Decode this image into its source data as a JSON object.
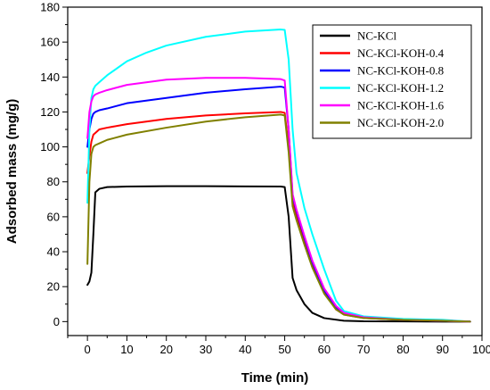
{
  "chart_data": {
    "type": "line",
    "title": "",
    "xlabel": "Time (min)",
    "ylabel": "Adsorbed mass (mg/g)",
    "xlim": [
      -5,
      100
    ],
    "ylim": [
      -8,
      180
    ],
    "xticks": [
      0,
      10,
      20,
      30,
      40,
      50,
      60,
      70,
      80,
      90,
      100
    ],
    "yticks": [
      0,
      20,
      40,
      60,
      80,
      100,
      120,
      140,
      160,
      180
    ],
    "grid": false,
    "legend_position": "top-right",
    "series": [
      {
        "name": "NC-KCl",
        "color": "#000000",
        "x": [
          0,
          0.5,
          1,
          1.5,
          2,
          3,
          5,
          10,
          20,
          30,
          40,
          49,
          50,
          51,
          52,
          53,
          55,
          57,
          60,
          65,
          70,
          80,
          90,
          97
        ],
        "y": [
          21,
          23,
          28,
          50,
          74,
          76,
          77,
          77.3,
          77.5,
          77.5,
          77.4,
          77.3,
          77,
          60,
          25,
          18,
          10,
          5,
          2,
          0.5,
          0.2,
          0.1,
          0,
          0
        ]
      },
      {
        "name": "NC-KCl-KOH-0.4",
        "color": "#ff0000",
        "x": [
          0,
          0.5,
          1,
          1.5,
          2,
          3,
          5,
          10,
          20,
          30,
          40,
          49,
          50,
          51,
          52,
          53,
          55,
          57,
          60,
          63,
          65,
          70,
          80,
          90,
          97
        ],
        "y": [
          85,
          95,
          103,
          107,
          108,
          110,
          111,
          113,
          116,
          118,
          119.2,
          120,
          119.5,
          100,
          68,
          60,
          45,
          32,
          17,
          7,
          4,
          2,
          1,
          0.5,
          0
        ]
      },
      {
        "name": "NC-KCl-KOH-0.8",
        "color": "#0000ff",
        "x": [
          0,
          0.5,
          1,
          1.5,
          2,
          3,
          5,
          10,
          20,
          30,
          40,
          49,
          50,
          51,
          52,
          53,
          55,
          57,
          60,
          63,
          65,
          70,
          80,
          90,
          97
        ],
        "y": [
          100,
          110,
          116,
          119,
          120,
          121,
          122,
          125,
          128,
          131,
          133,
          134.5,
          134,
          110,
          72,
          63,
          48,
          34,
          18,
          8,
          5,
          2.5,
          1,
          0.5,
          0
        ]
      },
      {
        "name": "NC-KCl-KOH-1.2",
        "color": "#00ffff",
        "x": [
          0,
          0.5,
          1,
          1.5,
          2,
          3,
          5,
          10,
          15,
          20,
          30,
          40,
          49,
          50,
          51,
          52,
          53,
          55,
          57,
          60,
          63,
          65,
          70,
          80,
          90,
          97
        ],
        "y": [
          68,
          110,
          128,
          133,
          135,
          137,
          141,
          149,
          154,
          158,
          163,
          166,
          167.2,
          167,
          150,
          110,
          85,
          65,
          50,
          30,
          12,
          6,
          3,
          1.5,
          1,
          0
        ]
      },
      {
        "name": "NC-KCl-KOH-1.6",
        "color": "#ff00ff",
        "x": [
          0,
          0.5,
          1,
          1.5,
          2,
          3,
          5,
          10,
          20,
          30,
          40,
          49,
          50,
          51,
          52,
          53,
          55,
          57,
          60,
          63,
          65,
          70,
          80,
          90,
          97
        ],
        "y": [
          105,
          120,
          126,
          129,
          130,
          131,
          132.5,
          135.5,
          138.5,
          139.5,
          139.5,
          138.8,
          138,
          110,
          73,
          64,
          49,
          35,
          19,
          9,
          5,
          2.5,
          1,
          0.5,
          0
        ]
      },
      {
        "name": "NC-KCl-KOH-2.0",
        "color": "#808000",
        "x": [
          0,
          0.5,
          1,
          1.5,
          2,
          3,
          5,
          10,
          20,
          30,
          40,
          49,
          50,
          51,
          52,
          53,
          55,
          57,
          60,
          63,
          65,
          70,
          80,
          90,
          97
        ],
        "y": [
          33,
          80,
          96,
          100,
          101,
          102,
          104,
          107,
          111,
          114.5,
          117,
          118.5,
          118,
          97,
          66,
          58,
          44,
          31,
          16,
          7,
          4,
          2,
          1,
          0.5,
          0
        ]
      }
    ]
  }
}
